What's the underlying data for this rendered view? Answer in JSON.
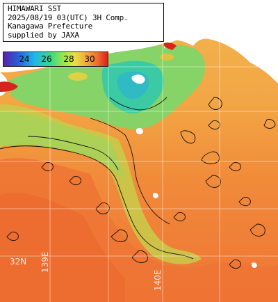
{
  "header": {
    "line1": "HIMAWARI SST",
    "line2": "2025/08/19 03(UTC) 3H Comp.",
    "line3": "Kanagawa Prefecture",
    "line4": "supplied by JAXA"
  },
  "colorbar": {
    "ticks": [
      "24",
      "26",
      "28",
      "30"
    ],
    "colors": [
      "#5a1fa6",
      "#2a5bd8",
      "#1fb6e6",
      "#36d98a",
      "#9ee64a",
      "#e8e040",
      "#f2a53a",
      "#ee6b2e",
      "#d81a1a"
    ]
  },
  "grid_labels": {
    "lat": "32N",
    "lon_a": "139E",
    "lon_b": "140E"
  },
  "colors": {
    "land": "#ffffff",
    "warm_sea": "#f07a34",
    "mid_sea": "#f2a94a",
    "cool_sea": "#a8d85a",
    "cold_sea": "#3fd0b0",
    "coast_red": "#d9231f"
  }
}
